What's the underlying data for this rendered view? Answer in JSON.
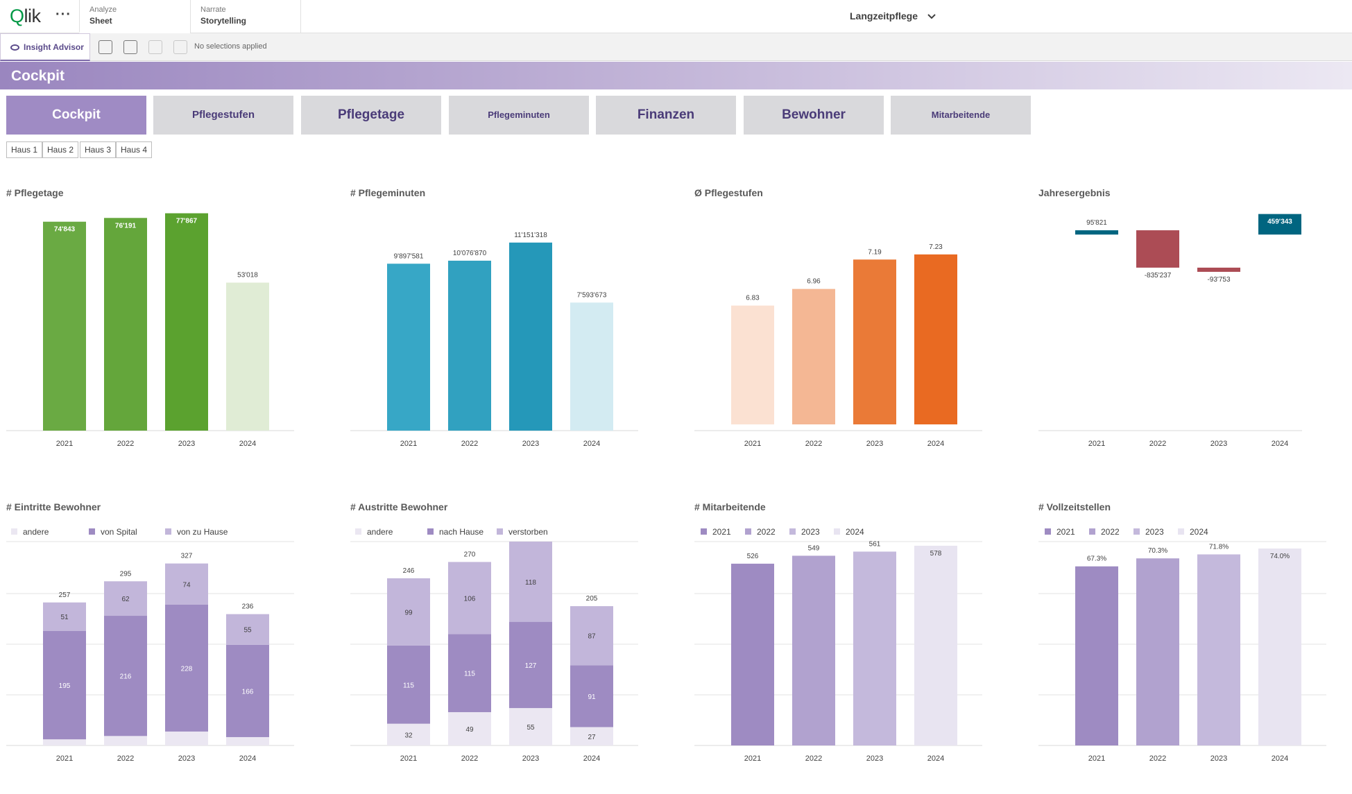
{
  "header": {
    "logo": "Qlik",
    "more": "···",
    "tabs": [
      {
        "small": "Analyze",
        "big": "Sheet"
      },
      {
        "small": "Narrate",
        "big": "Storytelling"
      }
    ],
    "app_title": "Langzeitpflege",
    "chevron_icon": "chevron-down-icon"
  },
  "selbar": {
    "insight_label": "Insight Advisor",
    "no_selections": "No selections applied"
  },
  "banner": {
    "title": "Cockpit"
  },
  "nav": [
    {
      "label": "Cockpit",
      "active": true
    },
    {
      "label": "Pflegestufen",
      "active": false
    },
    {
      "label": "Pflegetage",
      "active": false
    },
    {
      "label": "Pflegeminuten",
      "active": false
    },
    {
      "label": "Finanzen",
      "active": false
    },
    {
      "label": "Bewohner",
      "active": false
    },
    {
      "label": "Mitarbeitende",
      "active": false
    }
  ],
  "filters": [
    "Haus 1",
    "Haus 2",
    "Haus 3",
    "Haus 4"
  ],
  "chart_data": [
    {
      "type": "bar",
      "title": "# Pflegetage",
      "categories": [
        "2021",
        "2022",
        "2023",
        "2024"
      ],
      "values": [
        74843,
        76191,
        77867,
        53018
      ],
      "labels": [
        "74'843",
        "76'191",
        "77'867",
        "53'018"
      ],
      "colors": [
        "#6aaa43",
        "#64a63b",
        "#5ba22f",
        "#e0ecd5"
      ],
      "ylim": [
        0,
        78000
      ]
    },
    {
      "type": "bar",
      "title": "# Pflegeminuten",
      "categories": [
        "2021",
        "2022",
        "2023",
        "2024"
      ],
      "values": [
        9897581,
        10076870,
        11151318,
        7593673
      ],
      "labels": [
        "9'897'581",
        "10'076'870",
        "11'151'318",
        "7'593'673"
      ],
      "colors": [
        "#37a7c6",
        "#31a1c0",
        "#2598b9",
        "#d3ebf2"
      ],
      "ylim": [
        0,
        12500000
      ]
    },
    {
      "type": "bar",
      "title": "Ø Pflegestufen",
      "categories": [
        "2021",
        "2022",
        "2023",
        "2024"
      ],
      "values": [
        6.83,
        6.96,
        7.19,
        7.23
      ],
      "labels": [
        "6.83",
        "6.96",
        "7.19",
        "7.23"
      ],
      "colors": [
        "#fbe1d2",
        "#f4b794",
        "#ea7a37",
        "#e96a22"
      ],
      "ylim": [
        5.9,
        7.3
      ]
    },
    {
      "type": "waterfall",
      "title": "Jahresergebnis",
      "categories": [
        "2021",
        "2022",
        "2023",
        "2024"
      ],
      "values": [
        95821,
        -835237,
        -93753,
        459343
      ],
      "labels": [
        "95'821",
        "-835'237",
        "-93'753",
        "459'343"
      ],
      "colors": [
        "#006580",
        "#ac4c55",
        "#ac4c55",
        "#006580"
      ],
      "ylim": [
        -1050000,
        500000
      ]
    },
    {
      "type": "bar",
      "stacked": true,
      "title": "# Eintritte Bewohner",
      "categories": [
        "2021",
        "2022",
        "2023",
        "2024"
      ],
      "series": [
        {
          "name": "andere",
          "values": [
            11,
            17,
            25,
            15
          ],
          "labels": [
            "",
            "",
            "",
            ""
          ],
          "color": "#ebe7f2"
        },
        {
          "name": "von Spital",
          "values": [
            195,
            216,
            228,
            166
          ],
          "labels": [
            "195",
            "216",
            "228",
            "166"
          ],
          "color": "#9e8bc2"
        },
        {
          "name": "von zu Hause",
          "values": [
            51,
            62,
            74,
            55
          ],
          "labels": [
            "51",
            "62",
            "74",
            "55"
          ],
          "color": "#c2b6da"
        }
      ],
      "totals": [
        "257",
        "295",
        "327",
        "236"
      ],
      "ylim": [
        0,
        400
      ]
    },
    {
      "type": "bar",
      "stacked": true,
      "title": "# Austritte Bewohner",
      "categories": [
        "2021",
        "2022",
        "2023",
        "2024"
      ],
      "series": [
        {
          "name": "andere",
          "values": [
            32,
            49,
            55,
            27
          ],
          "labels": [
            "32",
            "49",
            "55",
            "27"
          ],
          "color": "#ebe7f2"
        },
        {
          "name": "nach Hause",
          "values": [
            115,
            115,
            127,
            91
          ],
          "labels": [
            "115",
            "115",
            "127",
            "91"
          ],
          "color": "#9e8bc2"
        },
        {
          "name": "verstorben",
          "values": [
            99,
            106,
            118,
            87
          ],
          "labels": [
            "99",
            "106",
            "118",
            "87"
          ],
          "color": "#c2b6da"
        }
      ],
      "totals": [
        "246",
        "270",
        "",
        "205"
      ],
      "ylim": [
        0,
        300
      ]
    },
    {
      "type": "bar",
      "title": "# Mitarbeitende",
      "categories": [
        "2021",
        "2022",
        "2023",
        "2024"
      ],
      "legend": [
        "2021",
        "2022",
        "2023",
        "2024"
      ],
      "values": [
        526,
        549,
        561,
        578
      ],
      "labels": [
        "526",
        "549",
        "561",
        "578"
      ],
      "colors": [
        "#9e8bc2",
        "#b1a2cf",
        "#c4b9dc",
        "#e8e4f1"
      ],
      "ylim": [
        0,
        600
      ]
    },
    {
      "type": "bar",
      "title": "# Vollzeitstellen",
      "categories": [
        "2021",
        "2022",
        "2023",
        "2024"
      ],
      "legend": [
        "2021",
        "2022",
        "2023",
        "2024"
      ],
      "values": [
        67.3,
        70.3,
        71.8,
        74.0
      ],
      "labels": [
        "67.3%",
        "70.3%",
        "71.8%",
        "74.0%"
      ],
      "colors": [
        "#9e8bc2",
        "#b1a2cf",
        "#c4b9dc",
        "#e8e4f1"
      ],
      "ylim": [
        0,
        80
      ]
    }
  ]
}
